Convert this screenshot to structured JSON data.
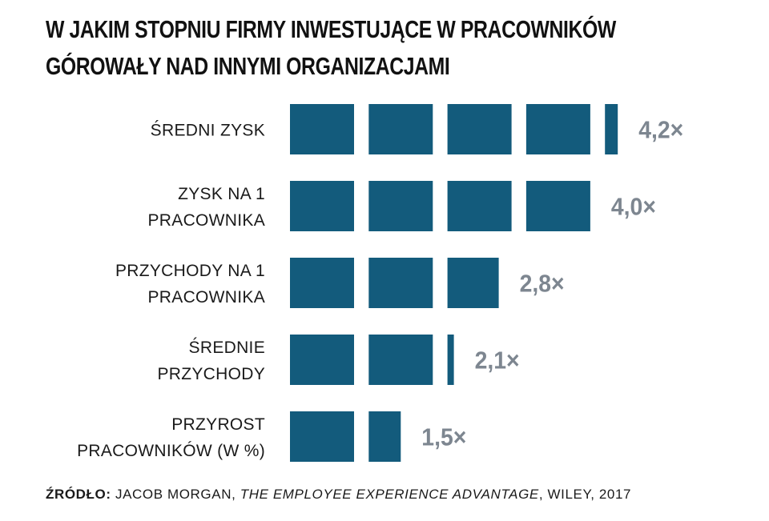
{
  "title_lines": [
    "W JAKIM STOPNIU FIRMY INWESTUJĄCE W PRACOWNIKÓW",
    "GÓROWAŁY NAD INNYMI ORGANIZACJAMI"
  ],
  "colors": {
    "bar": "#135b7c",
    "value_label": "#7d8690",
    "text": "#1a1a1a"
  },
  "chart_data": {
    "type": "bar",
    "orientation": "horizontal",
    "title": "W JAKIM STOPNIU FIRMY INWESTUJĄCE W PRACOWNIKÓW GÓROWAŁY NAD INNYMI ORGANIZACJAMI",
    "unit_style": "segmented, one block per 1×",
    "categories": [
      [
        "ŚREDNI ZYSK"
      ],
      [
        "ZYSK NA 1",
        "PRACOWNIKA"
      ],
      [
        "PRZYCHODY NA 1",
        "PRACOWNIKA"
      ],
      [
        "ŚREDNIE",
        "PRZYCHODY"
      ],
      [
        "PRZYROST",
        "PRACOWNIKÓW (W %)"
      ]
    ],
    "values": [
      4.2,
      4.0,
      2.8,
      2.1,
      1.5
    ],
    "value_labels": [
      "4,2×",
      "4,0×",
      "2,8×",
      "2,1×",
      "1,5×"
    ],
    "xlim": [
      0,
      4.2
    ],
    "grid": false,
    "legend": "none"
  },
  "source": {
    "prefix": "ŹRÓDŁO:",
    "author": "JACOB MORGAN,",
    "book": "THE EMPLOYEE EXPERIENCE ADVANTAGE",
    "rest": ", WILEY, 2017"
  }
}
